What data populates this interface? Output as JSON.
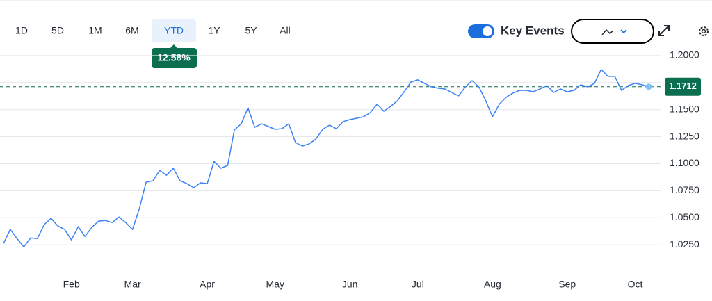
{
  "toolbar": {
    "ranges": [
      "1D",
      "5D",
      "1M",
      "6M",
      "YTD",
      "1Y",
      "5Y",
      "All"
    ],
    "selected_range": "YTD",
    "change_badge": "12.58%",
    "key_events": {
      "label": "Key Events",
      "on": true
    }
  },
  "chart_data": {
    "type": "line",
    "categories": [
      null,
      null,
      null,
      null,
      null,
      null,
      null,
      null,
      null,
      null,
      "Feb",
      null,
      null,
      null,
      null,
      null,
      null,
      null,
      null,
      "Mar",
      null,
      null,
      null,
      null,
      null,
      null,
      null,
      null,
      null,
      null,
      "Apr",
      null,
      null,
      null,
      null,
      null,
      null,
      null,
      null,
      null,
      "May",
      null,
      null,
      null,
      null,
      null,
      null,
      null,
      null,
      null,
      null,
      "Jun",
      null,
      null,
      null,
      null,
      null,
      null,
      null,
      null,
      null,
      "Jul",
      null,
      null,
      null,
      null,
      null,
      null,
      null,
      null,
      null,
      null,
      "Aug",
      null,
      null,
      null,
      null,
      null,
      null,
      null,
      null,
      null,
      null,
      "Sep",
      null,
      null,
      null,
      null,
      null,
      null,
      null,
      null,
      null,
      "Oct",
      null,
      null
    ],
    "values": [
      1.0263,
      1.0392,
      1.0308,
      1.0231,
      1.0314,
      1.0308,
      1.0437,
      1.0495,
      1.0424,
      1.0392,
      1.0295,
      1.0417,
      1.0327,
      1.0411,
      1.0469,
      1.0475,
      1.0456,
      1.0507,
      1.0456,
      1.0392,
      1.0585,
      1.0829,
      1.0842,
      1.0938,
      1.0893,
      1.0958,
      1.0842,
      1.0816,
      1.0778,
      1.0823,
      1.0816,
      1.1022,
      1.0958,
      1.0984,
      1.1312,
      1.1369,
      1.1517,
      1.1337,
      1.1369,
      1.1344,
      1.1318,
      1.1324,
      1.1369,
      1.1196,
      1.1164,
      1.1183,
      1.1228,
      1.1318,
      1.1357,
      1.1324,
      1.1389,
      1.1408,
      1.1421,
      1.1434,
      1.1472,
      1.155,
      1.1485,
      1.153,
      1.1582,
      1.1665,
      1.1756,
      1.1775,
      1.1743,
      1.171,
      1.1698,
      1.1691,
      1.1659,
      1.1627,
      1.171,
      1.1768,
      1.171,
      1.1582,
      1.1434,
      1.155,
      1.1614,
      1.1653,
      1.1678,
      1.1678,
      1.1665,
      1.1691,
      1.1723,
      1.1659,
      1.1691,
      1.1665,
      1.1678,
      1.173,
      1.171,
      1.1743,
      1.1871,
      1.1807,
      1.1807,
      1.1678,
      1.1723,
      1.1743,
      1.173,
      1.1712
    ],
    "color": "#3b82f6",
    "last_price": 1.1712,
    "ylim": [
      0.9975,
      1.2115
    ],
    "yticks": [
      {
        "value": 1.025,
        "label": "1.0250"
      },
      {
        "value": 1.05,
        "label": "1.0500"
      },
      {
        "value": 1.075,
        "label": "1.0750"
      },
      {
        "value": 1.1,
        "label": "1.1000"
      },
      {
        "value": 1.125,
        "label": "1.1250"
      },
      {
        "value": 1.15,
        "label": "1.1500"
      },
      {
        "value": 1.175,
        "label": "1.1750"
      },
      {
        "value": 1.2,
        "label": "1.2000"
      }
    ],
    "grid": true
  }
}
